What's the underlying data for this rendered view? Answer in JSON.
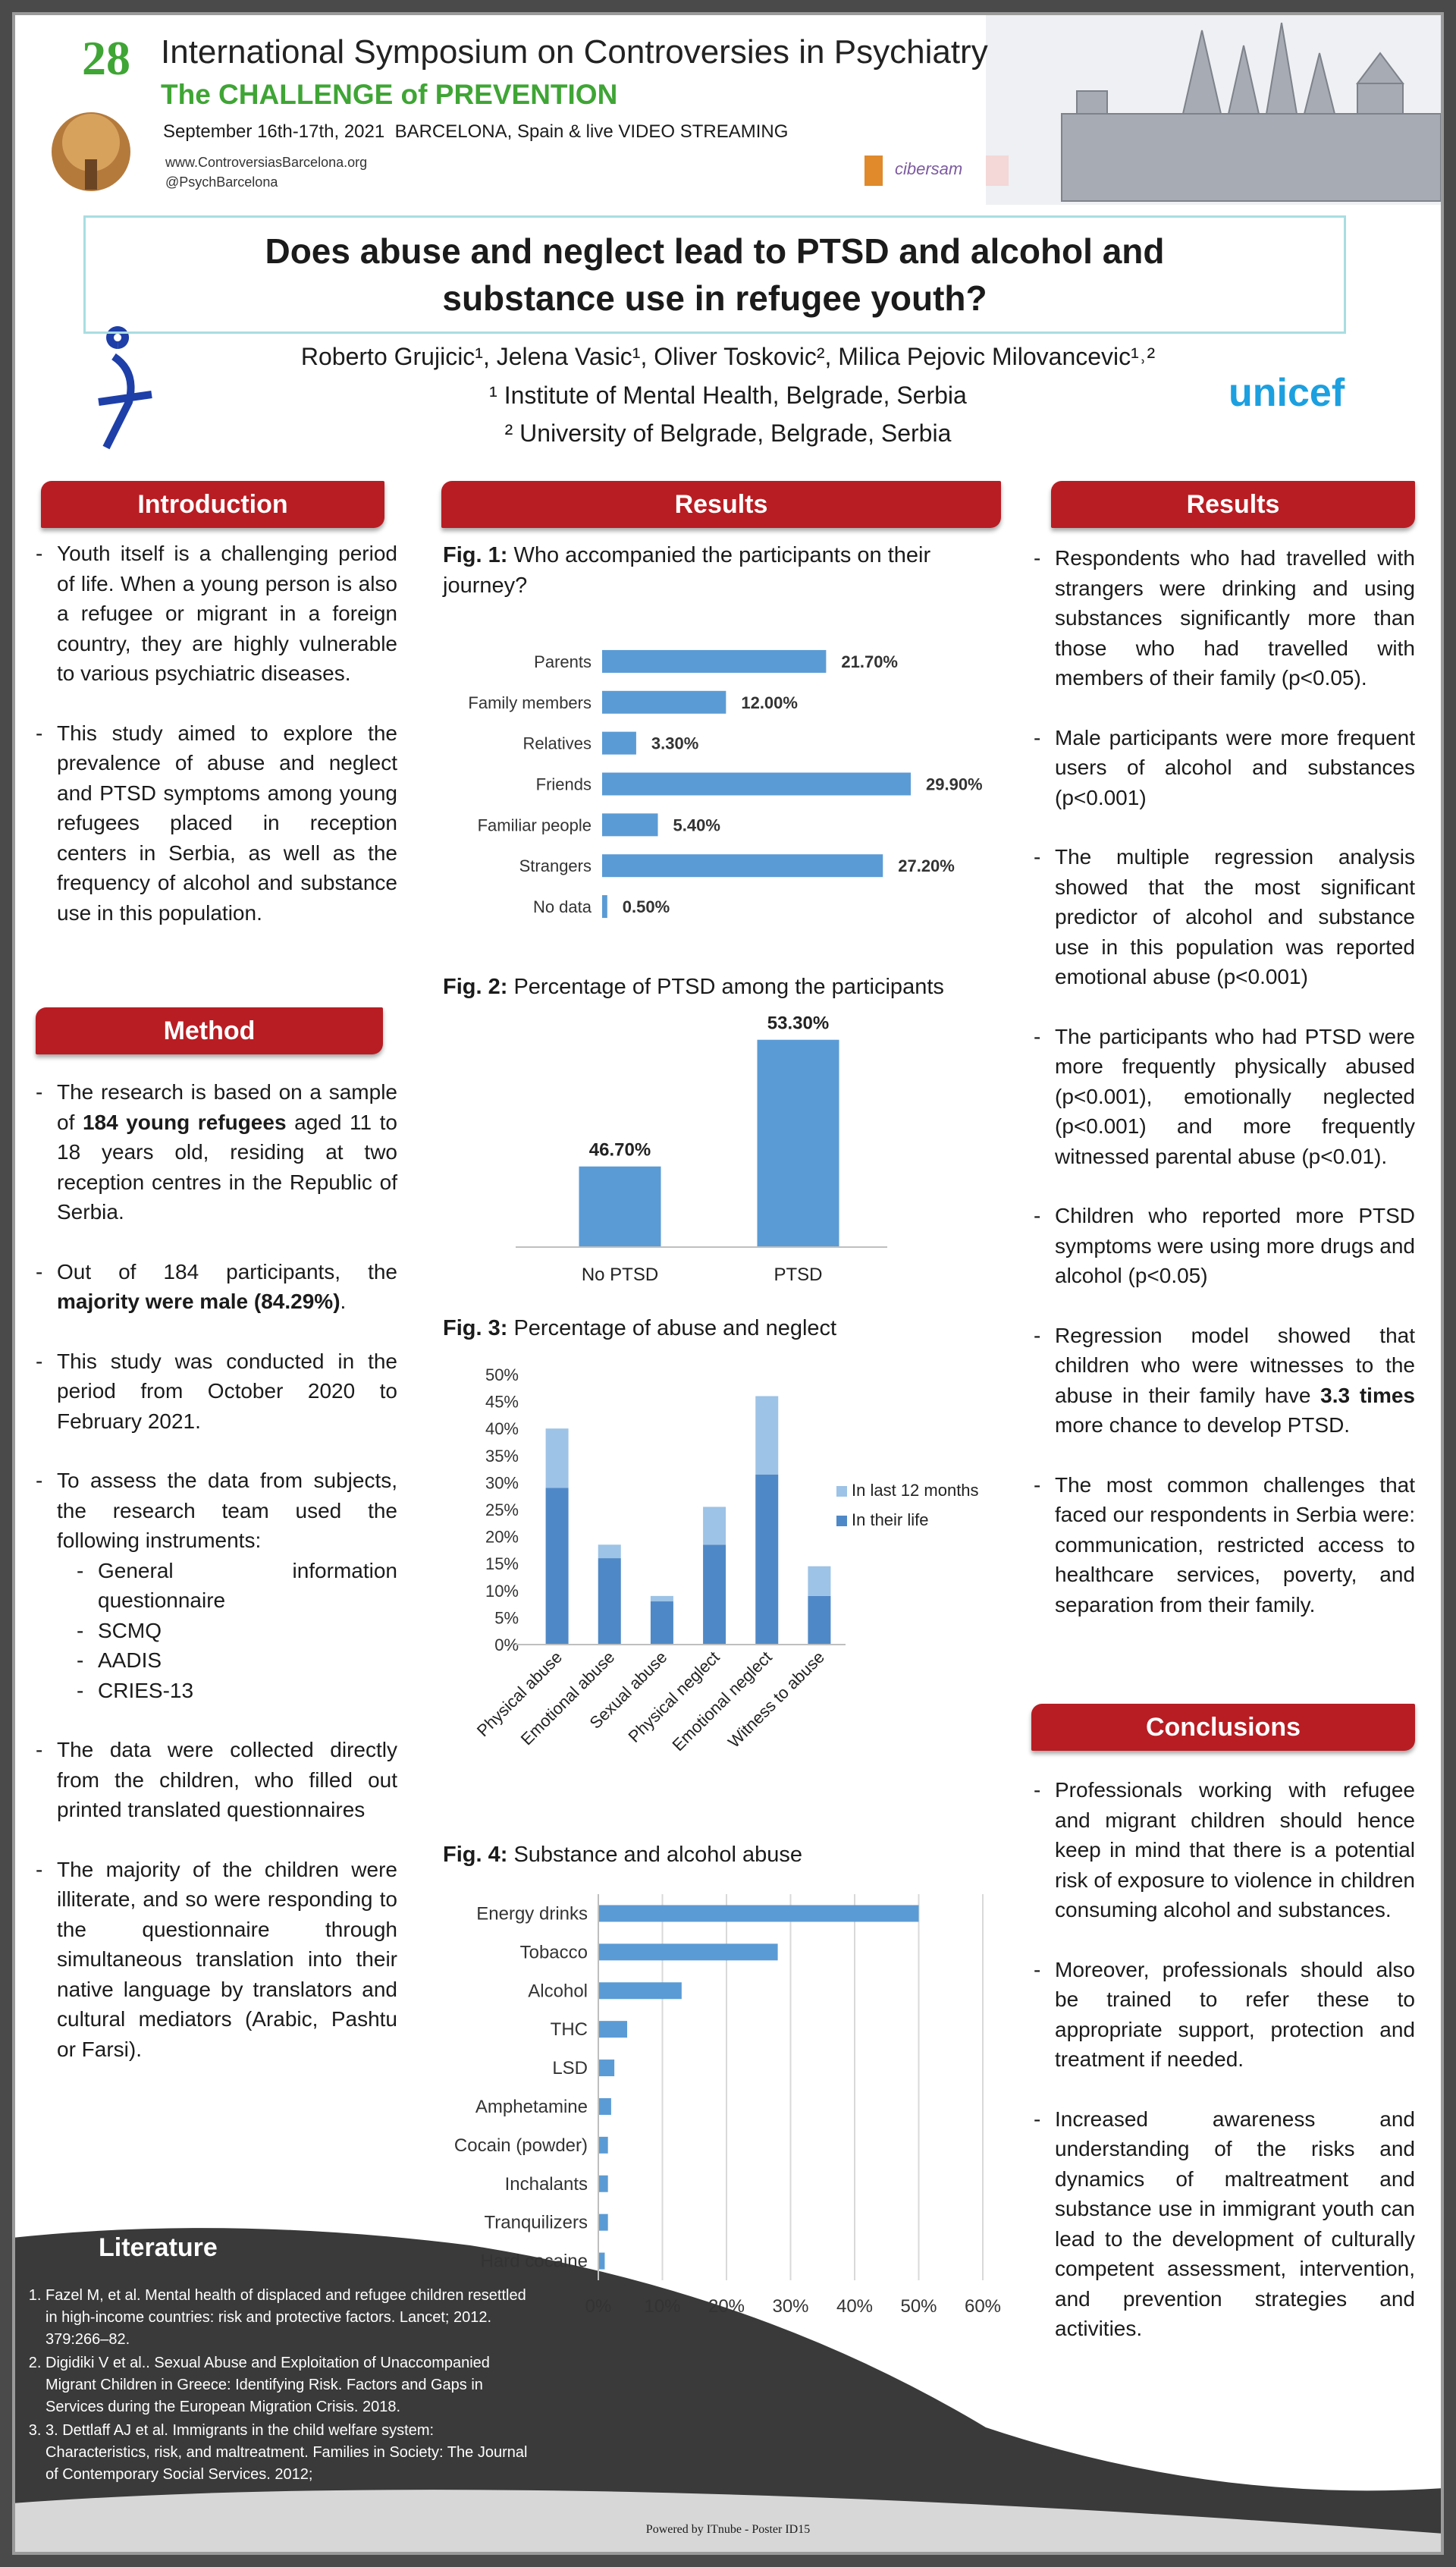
{
  "header": {
    "number": "28",
    "title": "International Symposium on Controversies in Psychiatry",
    "subtitle": "The CHALLENGE of PREVENTION",
    "date": "September 16th-17th, 2021",
    "place": "BARCELONA, Spain & live VIDEO STREAMING",
    "website": "www.ControversiasBarcelona.org",
    "twitter": "@PsychBarcelona",
    "sponsor": "cibersam"
  },
  "poster": {
    "title": "Does abuse and neglect lead to PTSD and alcohol and substance use in refugee youth?",
    "authors": "Roberto Grujicic¹, Jelena Vasic¹, Oliver Toskovic², Milica Pejovic Milovancevic¹˒²",
    "affiliations": [
      "¹ Institute of Mental Health, Belgrade, Serbia",
      "² University of Belgrade, Belgrade, Serbia"
    ],
    "logo": "unicef"
  },
  "introduction": {
    "heading": "Introduction",
    "items": [
      "Youth itself is a challenging period of life. When a young person is also a refugee or migrant in a foreign country, they are highly vulnerable to various psychiatric diseases.",
      "This study aimed to explore the prevalence of abuse and neglect and PTSD symptoms among young refugees placed in reception centers in Serbia, as well as the frequency of alcohol and substance use in this population."
    ]
  },
  "method": {
    "heading": "Method",
    "items": [
      {
        "parts": [
          "The research is based on a sample of ",
          "184 young refugees",
          " aged 11 to 18 years old, residing at two reception centres in the Republic of Serbia."
        ]
      },
      {
        "parts": [
          "Out of 184 participants, the ",
          "majority were male (84.29%)",
          "."
        ]
      },
      "This study was conducted in the period from October 2020 to February 2021.",
      {
        "text": "To assess the data from subjects, the research team used the following instruments:",
        "subitems": [
          "General information questionnaire",
          "SCMQ",
          "AADIS",
          "CRIES-13"
        ]
      },
      "The data were collected directly from the children, who filled out printed translated questionnaires",
      "The majority of the children were illiterate, and so were responding to the questionnaire through simultaneous translation into their native language by translators and cultural mediators (Arabic, Pashtu or Farsi)."
    ]
  },
  "results": {
    "heading": "Results"
  },
  "results_right": {
    "heading": "Results",
    "items": [
      "Respondents who had travelled with strangers were drinking and using substances significantly more than those who had travelled with members of their family (p<0.05).",
      "Male participants were more frequent users of alcohol and substances (p<0.001)",
      "The multiple regression analysis showed that the most significant predictor of alcohol and substance use in this population was reported emotional abuse (p<0.001)",
      "The participants who had PTSD were more frequently physically abused (p<0.001), emotionally neglected (p<0.001) and more frequently witnessed parental abuse (p<0.01).",
      "Children who reported more PTSD symptoms were using more drugs and alcohol (p<0.05)",
      {
        "parts": [
          "Regression model showed that children who were witnesses to the abuse in their family have ",
          "3.3 times",
          " more chance to develop PTSD."
        ]
      },
      "The most common challenges that faced our respondents in Serbia were: communication, restricted access to healthcare services, poverty, and separation from their family."
    ]
  },
  "conclusions": {
    "heading": "Conclusions",
    "items": [
      "Professionals working with refugee and migrant children should hence keep in mind that there is a potential risk of exposure to violence in children consuming alcohol and substances.",
      "Moreover, professionals should also be trained to refer these to appropriate support, protection and treatment if needed.",
      "Increased awareness and understanding of the risks and dynamics of maltreatment and substance use in immigrant youth can lead to the development of culturally competent assessment, intervention, and prevention strategies and activities."
    ]
  },
  "literature": {
    "heading": "Literature",
    "items": [
      "Fazel M, et al. Mental health of displaced and refugee children resettled in high-income countries: risk and protective factors. Lancet; 2012. 379:266–82.",
      "Digidiki V et al.. Sexual Abuse and Exploitation of Unaccompanied Migrant Children in Greece: Identifying Risk. Factors and Gaps in Services during the European Migration Crisis. 2018.",
      "3. Dettlaff AJ et al. Immigrants in the child welfare system: Characteristics, risk, and maltreatment. Families in Society: The Journal of Contemporary Social Services. 2012;"
    ]
  },
  "footer": "Powered by ITnube - Poster ID15",
  "chart_data": [
    {
      "type": "bar",
      "orientation": "horizontal",
      "figure": "Fig. 1:",
      "title": "Who accompanied the participants on their journey?",
      "color": "#5b9bd5",
      "categories": [
        "Parents",
        "Family members",
        "Relatives",
        "Friends",
        "Familiar people",
        "Strangers",
        "No data"
      ],
      "values": [
        21.7,
        12,
        3.3,
        29.9,
        5.4,
        27.2,
        0.5
      ],
      "value_labels": [
        "21.70%",
        "12.00%",
        "3.30%",
        "29.90%",
        "5.40%",
        "27.20%",
        "0.50%"
      ]
    },
    {
      "type": "bar",
      "orientation": "vertical",
      "figure": "Fig. 2:",
      "title": "Percentage of PTSD among the participants",
      "color": "#5b9bd5",
      "categories": [
        "No PTSD",
        "PTSD"
      ],
      "values": [
        46.7,
        53.3
      ],
      "value_labels": [
        "46.70%",
        "53.30%"
      ],
      "ylim": [
        42.5,
        54
      ]
    },
    {
      "type": "bar",
      "orientation": "vertical",
      "stacked": true,
      "figure": "Fig. 3:",
      "title": "Percentage of abuse and neglect",
      "grid": false,
      "categories": [
        "Physical abuse",
        "Emotional abuse",
        "Sexual abuse",
        "Physical neglect",
        "Emotional neglect",
        "Witness to abuse"
      ],
      "series": [
        {
          "name": "In their life",
          "color": "#4f88c6",
          "values": [
            29,
            16,
            8,
            18.5,
            31.5,
            9
          ]
        },
        {
          "name": "In last 12 months",
          "color": "#9dc3e6",
          "values": [
            11,
            2.5,
            1,
            7,
            14.5,
            5.5
          ]
        }
      ],
      "ylim": [
        0,
        50
      ],
      "yticks": [
        {
          "value": 0,
          "label": "0%"
        },
        {
          "value": 5,
          "label": "5%"
        },
        {
          "value": 10,
          "label": "10%"
        },
        {
          "value": 15,
          "label": "15%"
        },
        {
          "value": 20,
          "label": "20%"
        },
        {
          "value": 25,
          "label": "25%"
        },
        {
          "value": 30,
          "label": "30%"
        },
        {
          "value": 35,
          "label": "35%"
        },
        {
          "value": 40,
          "label": "40%"
        },
        {
          "value": 45,
          "label": "45%"
        },
        {
          "value": 50,
          "label": "50%"
        }
      ]
    },
    {
      "type": "bar",
      "orientation": "horizontal",
      "figure": "Fig. 4:",
      "title": "Substance and alcohol abuse",
      "color": "#5b9bd5",
      "grid": true,
      "categories": [
        "Energy drinks",
        "Tobacco",
        "Alcohol",
        "THC",
        "LSD",
        "Amphetamine",
        "Cocain (powder)",
        "Inchalants",
        "Tranquilizers",
        "Hard cocaine"
      ],
      "values": [
        50,
        28,
        13,
        4.5,
        2.5,
        2,
        1.5,
        1.5,
        1.5,
        1
      ],
      "xlim": [
        0,
        60
      ],
      "xticks": [
        {
          "value": 0,
          "label": "0%"
        },
        {
          "value": 10,
          "label": "10%"
        },
        {
          "value": 20,
          "label": "20%"
        },
        {
          "value": 30,
          "label": "30%"
        },
        {
          "value": 40,
          "label": "40%"
        },
        {
          "value": 50,
          "label": "50%"
        },
        {
          "value": 60,
          "label": "60%"
        }
      ]
    }
  ]
}
